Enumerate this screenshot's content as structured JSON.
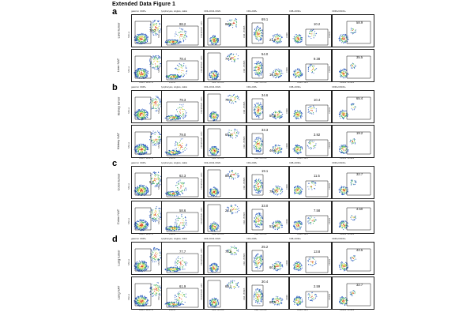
{
  "figure": {
    "title": "Extended Data Figure 1",
    "column_headers": [
      "gated on CD45+",
      "lymphocytes, singlets, viable",
      "CD3+CD14-CD20-",
      "CD3+CD8+",
      "CD8+CD39+",
      "CD39+CD103+"
    ],
    "panels": [
      {
        "letter": "a",
        "rows": [
          {
            "label": "Liver tumor",
            "values": [
              "70.3",
              "88.2",
              "88.8",
              "69.1",
              "10.2",
              "58.9"
            ],
            "extra": "21.9"
          },
          {
            "label": "Liver NAT",
            "values": [
              "",
              "78.4",
              "79.8",
              "54.0",
              "9.38",
              "35.5"
            ],
            "extra": "16.1"
          }
        ]
      },
      {
        "letter": "b",
        "rows": [
          {
            "label": "Kidney tumor",
            "values": [
              "",
              "79.3",
              "73.3",
              "34.6",
              "10.4",
              "65.4"
            ],
            "extra": "50.0"
          },
          {
            "label": "Kidney NAT",
            "values": [
              "",
              "79.0",
              "64.2",
              "33.3",
              "3.92",
              "19.2"
            ],
            "extra": "46.5"
          }
        ]
      },
      {
        "letter": "c",
        "rows": [
          {
            "label": "Colon tumor",
            "values": [
              "5.7",
              "62.3",
              "85.0",
              "19.1",
              "11.5",
              "32.7"
            ],
            "extra": "75.7"
          },
          {
            "label": "Colon NAT",
            "values": [
              "",
              "58.6",
              "24.8",
              "33.0",
              "7.58",
              "4.50"
            ],
            "extra": "53.4"
          }
        ]
      },
      {
        "letter": "d",
        "rows": [
          {
            "label": "Lung tumor",
            "values": [
              "",
              "77.7",
              "78.5",
              "25.2",
              "13.8",
              "44.5"
            ],
            "extra": "60.2"
          },
          {
            "label": "Lung NAT",
            "values": [
              "",
              "61.9",
              "69.1",
              "30.4",
              "2.59",
              "32.7"
            ],
            "extra": "60.6"
          }
        ]
      }
    ],
    "x_axes": [
      "CD45 - BUV737",
      "FSC-A",
      "CD3 - BV786",
      "CD8 - BV786",
      "CD39 - APC",
      "CD103 - BV421"
    ],
    "y_axes": [
      "SSC-A",
      "SSC-A",
      "CD14/CD20 - APC",
      "CD4 - BV605",
      "CD39",
      "CD103"
    ],
    "colors": {
      "high": "#d63b1f",
      "mid": "#e9d94a",
      "low": "#4db56a",
      "sparse": "#2f5fbf",
      "frame": "#222222"
    }
  }
}
